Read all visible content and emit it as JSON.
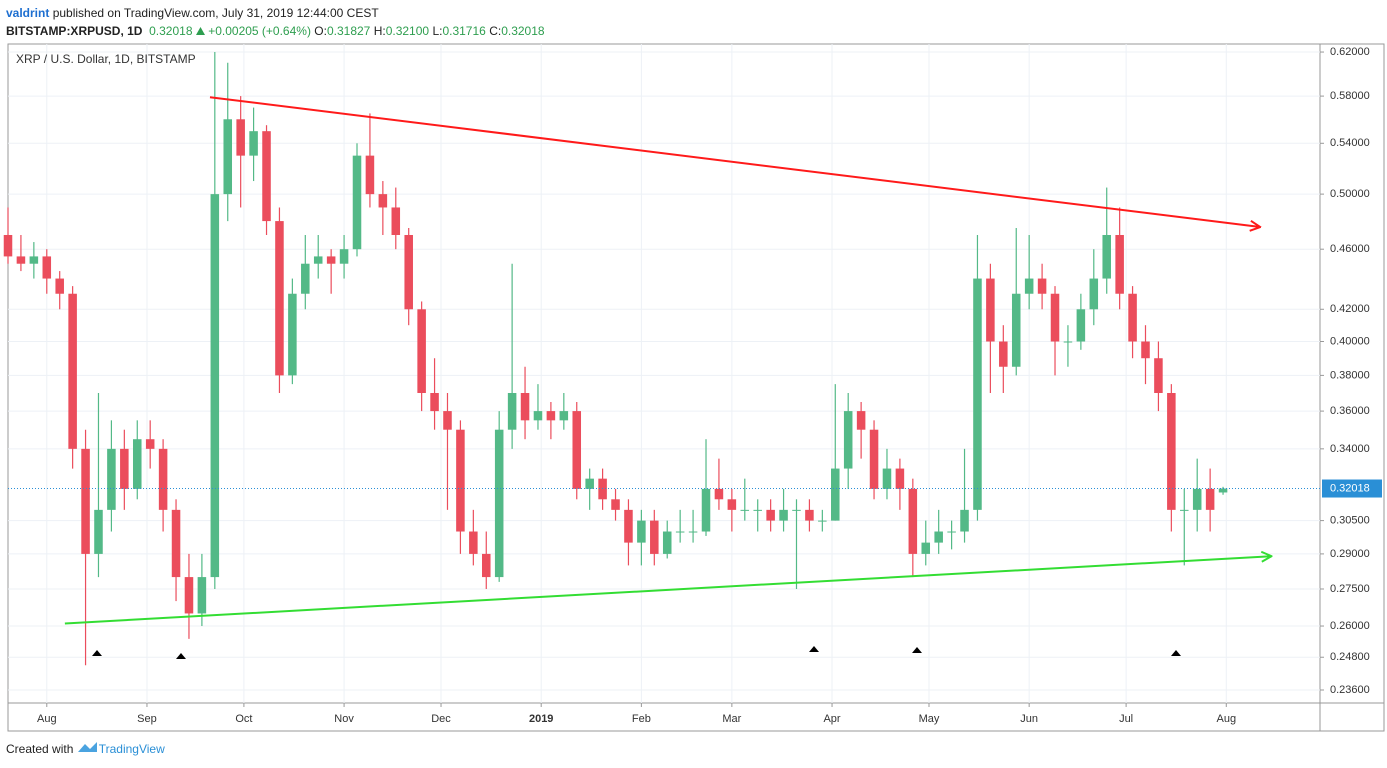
{
  "header": {
    "author": "valdrint",
    "published": "published on TradingView.com, July 31, 2019 12:44:00 CEST",
    "symbol": "BITSTAMP:XRPUSD, 1D",
    "price": "0.32018",
    "change": "+0.00205 (+0.64%)",
    "o_label": "O:",
    "open": "0.31827",
    "h_label": "H:",
    "high": "0.32100",
    "l_label": "L:",
    "low": "0.31716",
    "c_label": "C:",
    "close": "0.32018"
  },
  "footer": {
    "created": "Created with",
    "brand": "TradingView"
  },
  "chart_data": {
    "type": "candlestick",
    "title": "XRP / U.S. Dollar, 1D, BITSTAMP",
    "log_scale": true,
    "grid": true,
    "up_color": "#53b987",
    "down_color": "#eb4d5c",
    "last_price": 0.32018,
    "last_price_color": "#2a8fd6",
    "xlim": [
      -12,
      394
    ],
    "ylim": [
      0.2314,
      0.6276
    ],
    "xticks": [
      {
        "value": 0,
        "label": "Aug"
      },
      {
        "value": 31,
        "label": "Sep"
      },
      {
        "value": 61,
        "label": "Oct"
      },
      {
        "value": 92,
        "label": "Nov"
      },
      {
        "value": 122,
        "label": "Dec"
      },
      {
        "value": 153,
        "label": "2019"
      },
      {
        "value": 184,
        "label": "Feb"
      },
      {
        "value": 212,
        "label": "Mar"
      },
      {
        "value": 243,
        "label": "Apr"
      },
      {
        "value": 273,
        "label": "May"
      },
      {
        "value": 304,
        "label": "Jun"
      },
      {
        "value": 334,
        "label": "Jul"
      },
      {
        "value": 365,
        "label": "Aug"
      }
    ],
    "yticks": [
      {
        "value": 0.62,
        "label": "0.62000"
      },
      {
        "value": 0.58,
        "label": "0.58000"
      },
      {
        "value": 0.54,
        "label": "0.54000"
      },
      {
        "value": 0.5,
        "label": "0.50000"
      },
      {
        "value": 0.46,
        "label": "0.46000"
      },
      {
        "value": 0.42,
        "label": "0.42000"
      },
      {
        "value": 0.4,
        "label": "0.40000"
      },
      {
        "value": 0.38,
        "label": "0.38000"
      },
      {
        "value": 0.36,
        "label": "0.36000"
      },
      {
        "value": 0.34,
        "label": "0.34000"
      },
      {
        "value": 0.305,
        "label": "0.30500"
      },
      {
        "value": 0.29,
        "label": "0.29000"
      },
      {
        "value": 0.275,
        "label": "0.27500"
      },
      {
        "value": 0.26,
        "label": "0.26000"
      },
      {
        "value": 0.248,
        "label": "0.24800"
      },
      {
        "value": 0.236,
        "label": "0.23600"
      }
    ],
    "trendlines": [
      {
        "color": "#ff1a1a",
        "x": [
          50.5,
          375.5
        ],
        "y": [
          0.579,
          0.4757
        ]
      },
      {
        "color": "#33dd33",
        "x": [
          5.6,
          379
        ],
        "y": [
          0.261,
          0.289
        ]
      }
    ],
    "ohlc": [
      [
        -12,
        0.47,
        0.49,
        0.45,
        0.455
      ],
      [
        -8,
        0.455,
        0.47,
        0.445,
        0.45
      ],
      [
        -4,
        0.45,
        0.465,
        0.44,
        0.455
      ],
      [
        0,
        0.455,
        0.46,
        0.43,
        0.44
      ],
      [
        4,
        0.44,
        0.445,
        0.42,
        0.43
      ],
      [
        8,
        0.43,
        0.435,
        0.33,
        0.34
      ],
      [
        12,
        0.34,
        0.35,
        0.245,
        0.29
      ],
      [
        16,
        0.29,
        0.37,
        0.28,
        0.31
      ],
      [
        20,
        0.31,
        0.355,
        0.3,
        0.34
      ],
      [
        24,
        0.34,
        0.35,
        0.31,
        0.32
      ],
      [
        28,
        0.32,
        0.355,
        0.315,
        0.345
      ],
      [
        32,
        0.345,
        0.355,
        0.33,
        0.34
      ],
      [
        36,
        0.34,
        0.345,
        0.3,
        0.31
      ],
      [
        40,
        0.31,
        0.315,
        0.27,
        0.28
      ],
      [
        44,
        0.28,
        0.29,
        0.255,
        0.265
      ],
      [
        48,
        0.265,
        0.29,
        0.26,
        0.28
      ],
      [
        52,
        0.28,
        0.62,
        0.275,
        0.5
      ],
      [
        56,
        0.5,
        0.61,
        0.48,
        0.56
      ],
      [
        60,
        0.56,
        0.58,
        0.49,
        0.53
      ],
      [
        64,
        0.53,
        0.57,
        0.51,
        0.55
      ],
      [
        68,
        0.55,
        0.555,
        0.47,
        0.48
      ],
      [
        72,
        0.48,
        0.49,
        0.37,
        0.38
      ],
      [
        76,
        0.38,
        0.44,
        0.375,
        0.43
      ],
      [
        80,
        0.43,
        0.47,
        0.42,
        0.45
      ],
      [
        84,
        0.45,
        0.47,
        0.44,
        0.455
      ],
      [
        88,
        0.455,
        0.46,
        0.43,
        0.45
      ],
      [
        92,
        0.45,
        0.47,
        0.44,
        0.46
      ],
      [
        96,
        0.46,
        0.54,
        0.455,
        0.53
      ],
      [
        100,
        0.53,
        0.565,
        0.49,
        0.5
      ],
      [
        104,
        0.5,
        0.51,
        0.47,
        0.49
      ],
      [
        108,
        0.49,
        0.505,
        0.46,
        0.47
      ],
      [
        112,
        0.47,
        0.475,
        0.41,
        0.42
      ],
      [
        116,
        0.42,
        0.425,
        0.36,
        0.37
      ],
      [
        120,
        0.37,
        0.39,
        0.35,
        0.36
      ],
      [
        124,
        0.36,
        0.37,
        0.31,
        0.35
      ],
      [
        128,
        0.35,
        0.355,
        0.29,
        0.3
      ],
      [
        132,
        0.3,
        0.31,
        0.285,
        0.29
      ],
      [
        136,
        0.29,
        0.3,
        0.275,
        0.28
      ],
      [
        140,
        0.28,
        0.36,
        0.278,
        0.35
      ],
      [
        144,
        0.35,
        0.45,
        0.34,
        0.37
      ],
      [
        148,
        0.37,
        0.385,
        0.345,
        0.355
      ],
      [
        152,
        0.355,
        0.375,
        0.35,
        0.36
      ],
      [
        156,
        0.36,
        0.365,
        0.345,
        0.355
      ],
      [
        160,
        0.355,
        0.37,
        0.35,
        0.36
      ],
      [
        164,
        0.36,
        0.365,
        0.315,
        0.32
      ],
      [
        168,
        0.32,
        0.33,
        0.31,
        0.325
      ],
      [
        172,
        0.325,
        0.33,
        0.31,
        0.315
      ],
      [
        176,
        0.315,
        0.32,
        0.305,
        0.31
      ],
      [
        180,
        0.31,
        0.315,
        0.285,
        0.295
      ],
      [
        184,
        0.295,
        0.31,
        0.285,
        0.305
      ],
      [
        188,
        0.305,
        0.31,
        0.285,
        0.29
      ],
      [
        192,
        0.29,
        0.305,
        0.288,
        0.3
      ],
      [
        196,
        0.3,
        0.31,
        0.295,
        0.3
      ],
      [
        200,
        0.3,
        0.31,
        0.295,
        0.3
      ],
      [
        204,
        0.3,
        0.345,
        0.298,
        0.32
      ],
      [
        208,
        0.32,
        0.335,
        0.31,
        0.315
      ],
      [
        212,
        0.315,
        0.32,
        0.3,
        0.31
      ],
      [
        216,
        0.31,
        0.325,
        0.305,
        0.31
      ],
      [
        220,
        0.31,
        0.315,
        0.3,
        0.31
      ],
      [
        224,
        0.31,
        0.315,
        0.3,
        0.305
      ],
      [
        228,
        0.305,
        0.32,
        0.3,
        0.31
      ],
      [
        232,
        0.31,
        0.315,
        0.275,
        0.31
      ],
      [
        236,
        0.31,
        0.315,
        0.3,
        0.305
      ],
      [
        240,
        0.305,
        0.31,
        0.3,
        0.305
      ],
      [
        244,
        0.305,
        0.375,
        0.305,
        0.33
      ],
      [
        248,
        0.33,
        0.37,
        0.32,
        0.36
      ],
      [
        252,
        0.36,
        0.365,
        0.335,
        0.35
      ],
      [
        256,
        0.35,
        0.355,
        0.315,
        0.32
      ],
      [
        260,
        0.32,
        0.34,
        0.315,
        0.33
      ],
      [
        264,
        0.33,
        0.335,
        0.31,
        0.32
      ],
      [
        268,
        0.32,
        0.325,
        0.28,
        0.29
      ],
      [
        272,
        0.29,
        0.305,
        0.285,
        0.295
      ],
      [
        276,
        0.295,
        0.31,
        0.29,
        0.3
      ],
      [
        280,
        0.3,
        0.305,
        0.292,
        0.3
      ],
      [
        284,
        0.3,
        0.34,
        0.295,
        0.31
      ],
      [
        288,
        0.31,
        0.47,
        0.305,
        0.44
      ],
      [
        292,
        0.44,
        0.45,
        0.37,
        0.4
      ],
      [
        296,
        0.4,
        0.41,
        0.37,
        0.385
      ],
      [
        300,
        0.385,
        0.475,
        0.38,
        0.43
      ],
      [
        304,
        0.43,
        0.47,
        0.42,
        0.44
      ],
      [
        308,
        0.44,
        0.45,
        0.42,
        0.43
      ],
      [
        312,
        0.43,
        0.435,
        0.38,
        0.4
      ],
      [
        316,
        0.4,
        0.41,
        0.385,
        0.4
      ],
      [
        320,
        0.4,
        0.43,
        0.395,
        0.42
      ],
      [
        324,
        0.42,
        0.46,
        0.41,
        0.44
      ],
      [
        328,
        0.44,
        0.505,
        0.43,
        0.47
      ],
      [
        332,
        0.47,
        0.49,
        0.42,
        0.43
      ],
      [
        336,
        0.43,
        0.435,
        0.39,
        0.4
      ],
      [
        340,
        0.4,
        0.41,
        0.375,
        0.39
      ],
      [
        344,
        0.39,
        0.4,
        0.36,
        0.37
      ],
      [
        348,
        0.37,
        0.375,
        0.3,
        0.31
      ],
      [
        352,
        0.31,
        0.32,
        0.285,
        0.31
      ],
      [
        356,
        0.31,
        0.335,
        0.3,
        0.32
      ],
      [
        360,
        0.32,
        0.33,
        0.3,
        0.31
      ],
      [
        364,
        0.31827,
        0.321,
        0.31716,
        0.32018
      ]
    ]
  }
}
